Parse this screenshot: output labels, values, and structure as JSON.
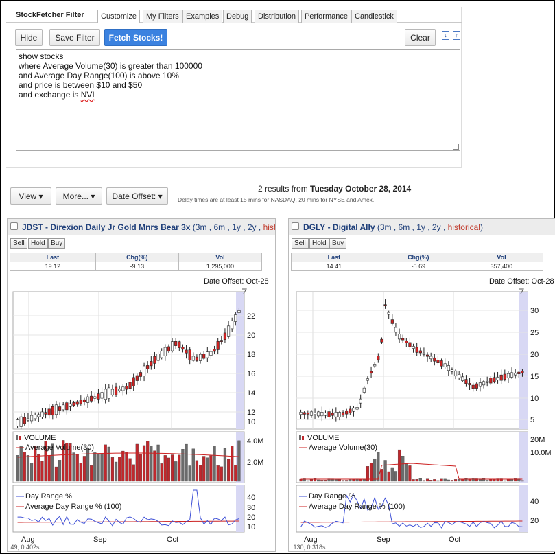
{
  "app": {
    "title": "StockFetcher Filter",
    "tabs": [
      "Customize",
      "My Filters",
      "Examples",
      "Debug",
      "Distribution",
      "Performance",
      "Candlestick"
    ],
    "active_tab": "Customize"
  },
  "toolbar": {
    "hide_label": "Hide",
    "save_label": "Save Filter",
    "fetch_label": "Fetch Stocks!",
    "clear_label": "Clear",
    "sort_down_icon": "arrow-down-icon",
    "sort_up_icon": "arrow-up-icon"
  },
  "query": {
    "lines": [
      "show stocks",
      "where Average Volume(30) is greater than 100000",
      "and Average Day Range(100) is above 10%",
      "and price is between $10 and $50",
      "and exchange is "
    ],
    "last_word": "NVI"
  },
  "results": {
    "view_label": "View",
    "more_label": "More...",
    "date_offset_label": "Date Offset:",
    "count_prefix": "2 results from",
    "count_date": "Tuesday October 28, 2014",
    "delay_note": "Delay times are at least 15 mins for NASDAQ, 20 mins for NYSE and Amex."
  },
  "stocks": [
    {
      "ticker": "JDST",
      "name": "Direxion Daily Jr Gold Mnrs Bear 3x",
      "ranges": [
        "3m",
        "6m",
        "1y",
        "2y"
      ],
      "historical": "historical",
      "actions": [
        "Sell",
        "Hold",
        "Buy"
      ],
      "columns": [
        "Last",
        "Chg(%)",
        "Vol"
      ],
      "last": "19.12",
      "chg": "-9.13",
      "vol": "1,295,000",
      "date_offset": "Date Offset: Oct-28",
      "price_ticks": [
        "10",
        "12",
        "14",
        "16",
        "18",
        "20",
        "22"
      ],
      "volume_label": "VOLUME",
      "avg_volume_label": "Average Volume(30)",
      "volume_ticks": [
        "2.0M",
        "4.0M"
      ],
      "day_range_label": "Day Range %",
      "avg_day_range_label": "Average Day Range % (100)",
      "day_range_ticks": [
        "10",
        "20",
        "30",
        "40"
      ],
      "months": [
        "Aug",
        "Sep",
        "Oct"
      ],
      "footer": ".49, 0.402s"
    },
    {
      "ticker": "DGLY",
      "name": "Digital Ally",
      "ranges": [
        "3m",
        "6m",
        "1y",
        "2y"
      ],
      "historical": "historical",
      "actions": [
        "Sell",
        "Hold",
        "Buy"
      ],
      "columns": [
        "Last",
        "Chg(%)",
        "Vol"
      ],
      "last": "14.41",
      "chg": "-5.69",
      "vol": "357,400",
      "date_offset": "Date Offset: Oct-28",
      "price_ticks": [
        "5",
        "10",
        "15",
        "20",
        "25",
        "30"
      ],
      "volume_label": "VOLUME",
      "avg_volume_label": "Average Volume(30)",
      "volume_ticks": [
        "10.0M",
        "20M"
      ],
      "day_range_label": "Day Range %",
      "avg_day_range_label": "Average Day Range % (100)",
      "day_range_ticks": [
        "20",
        "40"
      ],
      "months": [
        "Aug",
        "Sep",
        "Oct"
      ],
      "footer": ".130, 0.318s"
    }
  ],
  "colors": {
    "up_candle": "#ffffff",
    "down_candle": "#cc2222",
    "volume_up": "#6b6b6b",
    "volume_down": "#c0282d",
    "avg_line": "#cc2222",
    "day_range_line": "#3d4fd6",
    "highlight_band": "#d8d8f4",
    "fetch_button": "#3b82e0"
  }
}
